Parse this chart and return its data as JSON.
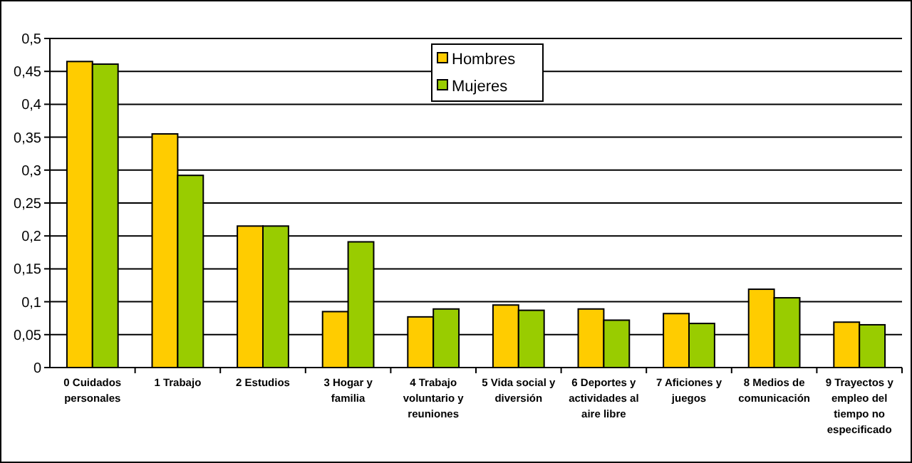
{
  "chart_data": {
    "type": "bar",
    "categories": [
      "0 Cuidados personales",
      "1 Trabajo",
      "2 Estudios",
      "3 Hogar y familia",
      "4 Trabajo voluntario y reuniones",
      "5 Vida social y diversión",
      "6 Deportes y actividades al aire libre",
      "7 Aficiones y juegos",
      "8 Medios de comunicación",
      "9 Trayectos y empleo del tiempo no especificado"
    ],
    "series": [
      {
        "name": "Hombres",
        "color": "#ffcc00",
        "values": [
          0.465,
          0.355,
          0.215,
          0.085,
          0.077,
          0.095,
          0.089,
          0.082,
          0.119,
          0.069
        ]
      },
      {
        "name": "Mujeres",
        "color": "#99cc00",
        "values": [
          0.461,
          0.292,
          0.215,
          0.191,
          0.089,
          0.087,
          0.072,
          0.067,
          0.106,
          0.065
        ]
      }
    ],
    "ylim": [
      0,
      0.5
    ],
    "yticks": [
      {
        "value": 0,
        "label": "0"
      },
      {
        "value": 0.05,
        "label": "0,05"
      },
      {
        "value": 0.1,
        "label": "0,1"
      },
      {
        "value": 0.15,
        "label": "0,15"
      },
      {
        "value": 0.2,
        "label": "0,2"
      },
      {
        "value": 0.25,
        "label": "0,25"
      },
      {
        "value": 0.3,
        "label": "0,3"
      },
      {
        "value": 0.35,
        "label": "0,35"
      },
      {
        "value": 0.4,
        "label": "0,4"
      },
      {
        "value": 0.45,
        "label": "0,45"
      },
      {
        "value": 0.5,
        "label": "0,5"
      }
    ],
    "grid": "y",
    "legend": "top"
  }
}
